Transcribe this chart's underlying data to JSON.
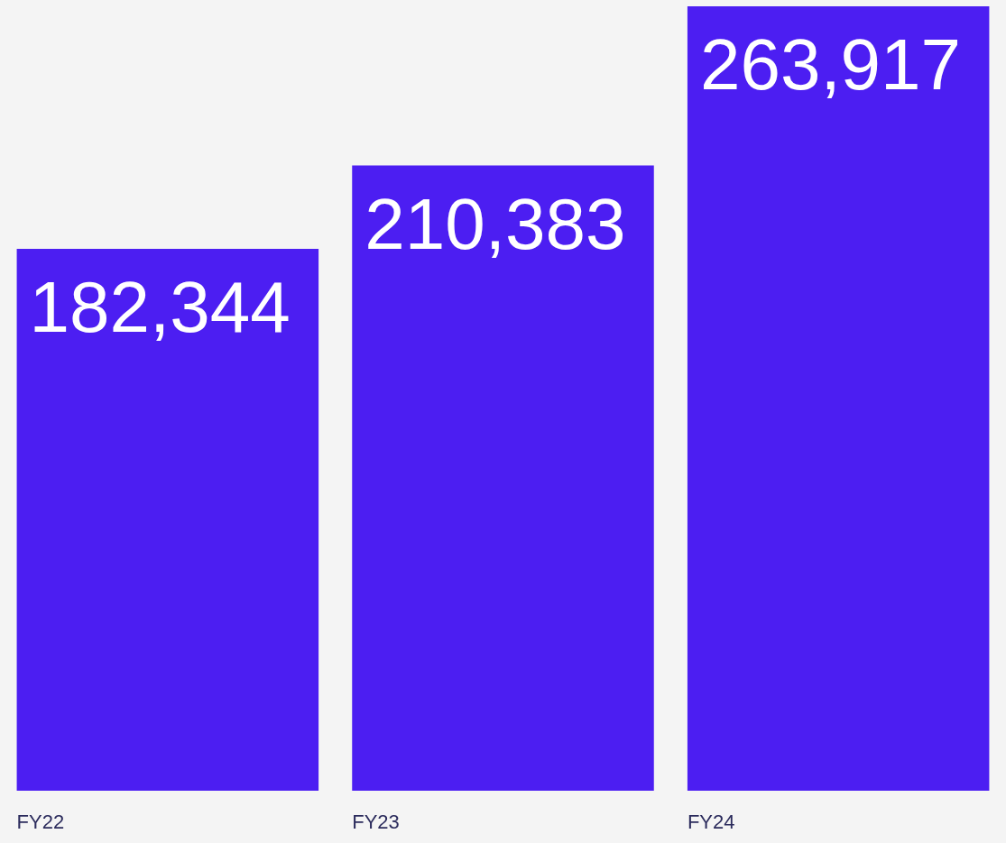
{
  "chart_data": {
    "type": "bar",
    "categories": [
      "FY22",
      "FY23",
      "FY24"
    ],
    "values": [
      182344,
      210383,
      263917
    ],
    "value_labels": [
      "182,344",
      "210,383",
      "263,917"
    ],
    "color": "#4c1ef2"
  }
}
